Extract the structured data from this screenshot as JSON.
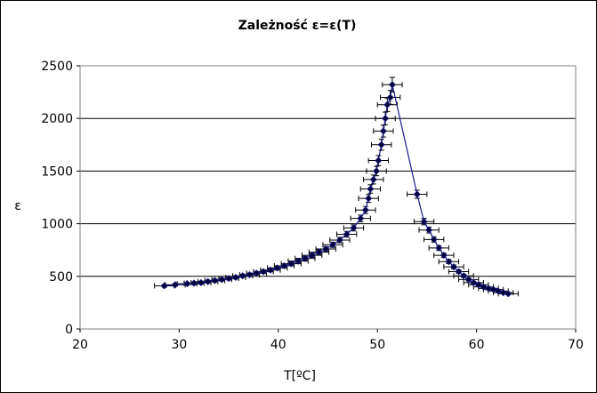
{
  "chart_data": {
    "type": "scatter",
    "title": "Zależność ε=ε(T)",
    "xlabel": "T[ºC]",
    "ylabel": "ε",
    "xlim": [
      20,
      70
    ],
    "ylim": [
      0,
      2500
    ],
    "xticks": [
      "20",
      "30",
      "40",
      "50",
      "60",
      "70"
    ],
    "yticks": [
      "0",
      "500",
      "1000",
      "1500",
      "2000",
      "2500"
    ],
    "grid": "horizontal",
    "legend": "none",
    "x_error": 1,
    "y_error_fraction": 0.03,
    "colors": {
      "series": "#1a1a8c",
      "marker": "#000033",
      "grid": "#000000"
    },
    "series": [
      {
        "x": [
          28.5,
          29.6,
          30.8,
          31.5,
          32.2,
          32.9,
          33.6,
          34.3,
          35.0,
          35.7,
          36.4,
          37.1,
          37.8,
          38.5,
          39.2,
          39.9,
          40.6,
          41.3,
          42.0,
          42.7,
          43.4,
          44.1,
          44.8,
          45.5,
          46.2,
          46.9,
          47.6,
          48.3,
          48.8,
          49.1,
          49.3,
          49.6,
          49.9,
          50.1,
          50.4,
          50.6,
          50.8,
          51.0,
          51.3,
          51.5,
          54.0,
          54.7,
          55.2,
          55.7,
          56.2,
          56.7,
          57.2,
          57.7,
          58.2,
          58.7,
          59.2,
          59.7,
          60.2,
          60.7,
          61.2,
          61.7,
          62.2,
          62.7,
          63.2
        ],
        "y": [
          410,
          420,
          430,
          435,
          440,
          450,
          460,
          470,
          480,
          490,
          505,
          515,
          530,
          545,
          560,
          580,
          600,
          620,
          645,
          670,
          700,
          730,
          760,
          800,
          845,
          900,
          960,
          1050,
          1130,
          1240,
          1330,
          1420,
          1500,
          1600,
          1750,
          1880,
          2000,
          2130,
          2200,
          2320,
          1280,
          1020,
          940,
          850,
          770,
          700,
          640,
          590,
          545,
          505,
          470,
          440,
          420,
          400,
          385,
          375,
          360,
          345,
          335
        ]
      }
    ]
  }
}
